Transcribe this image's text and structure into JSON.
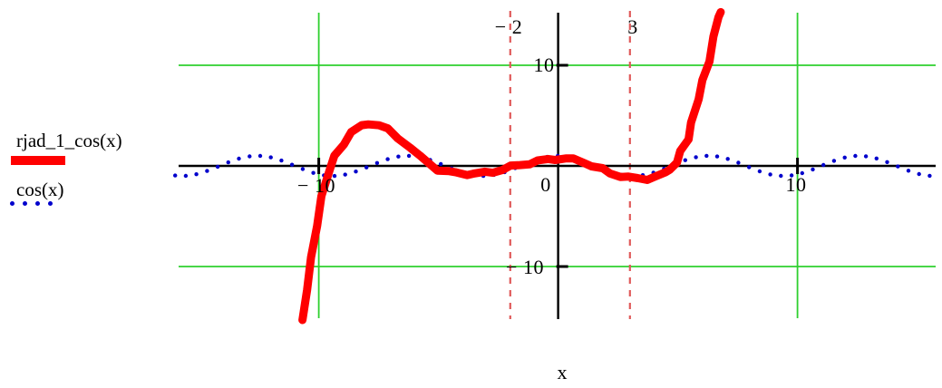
{
  "legend": {
    "items": [
      {
        "label": "rjad_1_cos(x)",
        "swatch": "thick-red-line"
      },
      {
        "label": "cos(x)",
        "swatch": "blue-dots"
      }
    ]
  },
  "chart_data": {
    "type": "line",
    "title": "",
    "xlabel": "x",
    "ylabel": "",
    "grid": true,
    "x_axis": {
      "min": -16,
      "max": 15.8,
      "ticks": [
        {
          "v": -10,
          "label": "− 10"
        },
        {
          "v": 0,
          "label": "0"
        },
        {
          "v": 10,
          "label": "10"
        }
      ]
    },
    "y_axis": {
      "min": -15.2,
      "max": 15.4,
      "ticks": [
        {
          "v": 10,
          "label": "10"
        },
        {
          "v": -10,
          "label": "− 10"
        }
      ]
    },
    "gridlines": {
      "x_values": [
        -10,
        10
      ],
      "y_values": [
        10,
        -10
      ],
      "color": "#2ed02e"
    },
    "vertical_markers": [
      {
        "x": -2,
        "label": "− 2"
      },
      {
        "x": 3,
        "label": "3"
      }
    ],
    "marker_line_color": "#e05a5a",
    "axis_color": "#000000",
    "series": [
      {
        "name": "rjad_1_cos(x)",
        "style": "thick-line",
        "color": "#ff0000",
        "points": [
          [
            -10.68,
            -15.2
          ],
          [
            -10.5,
            -12.3
          ],
          [
            -10.3,
            -9.2
          ],
          [
            -10.1,
            -5.9
          ],
          [
            -9.85,
            -2.9
          ],
          [
            -9.58,
            -0.45
          ],
          [
            -9.3,
            1.0
          ],
          [
            -9.0,
            2.25
          ],
          [
            -8.6,
            3.3
          ],
          [
            -8.25,
            3.95
          ],
          [
            -7.9,
            4.25
          ],
          [
            -7.5,
            4.05
          ],
          [
            -7.1,
            3.6
          ],
          [
            -6.7,
            2.8
          ],
          [
            -6.2,
            1.9
          ],
          [
            -5.75,
            0.9
          ],
          [
            -5.35,
            0.1
          ],
          [
            -5.0,
            -0.35
          ],
          [
            -4.6,
            -0.6
          ],
          [
            -4.25,
            -0.7
          ],
          [
            -3.85,
            -0.78
          ],
          [
            -3.5,
            -0.78
          ],
          [
            -3.1,
            -0.7
          ],
          [
            -2.7,
            -0.6
          ],
          [
            -2.35,
            -0.35
          ],
          [
            -1.97,
            -0.1
          ],
          [
            -1.6,
            0.1
          ],
          [
            -1.2,
            0.27
          ],
          [
            -0.83,
            0.45
          ],
          [
            -0.45,
            0.63
          ],
          [
            -0.08,
            0.72
          ],
          [
            0.3,
            0.72
          ],
          [
            0.68,
            0.63
          ],
          [
            1.06,
            0.36
          ],
          [
            1.44,
            0.0
          ],
          [
            1.82,
            -0.36
          ],
          [
            2.2,
            -0.72
          ],
          [
            2.58,
            -0.99
          ],
          [
            2.95,
            -1.17
          ],
          [
            3.33,
            -1.26
          ],
          [
            3.71,
            -1.26
          ],
          [
            4.1,
            -1.08
          ],
          [
            4.47,
            -0.72
          ],
          [
            4.7,
            -0.27
          ],
          [
            4.92,
            0.36
          ],
          [
            5.15,
            1.35
          ],
          [
            5.4,
            2.7
          ],
          [
            5.6,
            4.4
          ],
          [
            5.83,
            6.5
          ],
          [
            6.06,
            8.5
          ],
          [
            6.3,
            10.5
          ],
          [
            6.5,
            12.8
          ],
          [
            6.7,
            14.7
          ],
          [
            6.78,
            15.4
          ]
        ]
      },
      {
        "name": "cos(x)",
        "style": "dots",
        "color": "#0000cc",
        "fn": "cos",
        "x_start": -16,
        "x_step": 0.444,
        "n_points": 72
      }
    ]
  }
}
